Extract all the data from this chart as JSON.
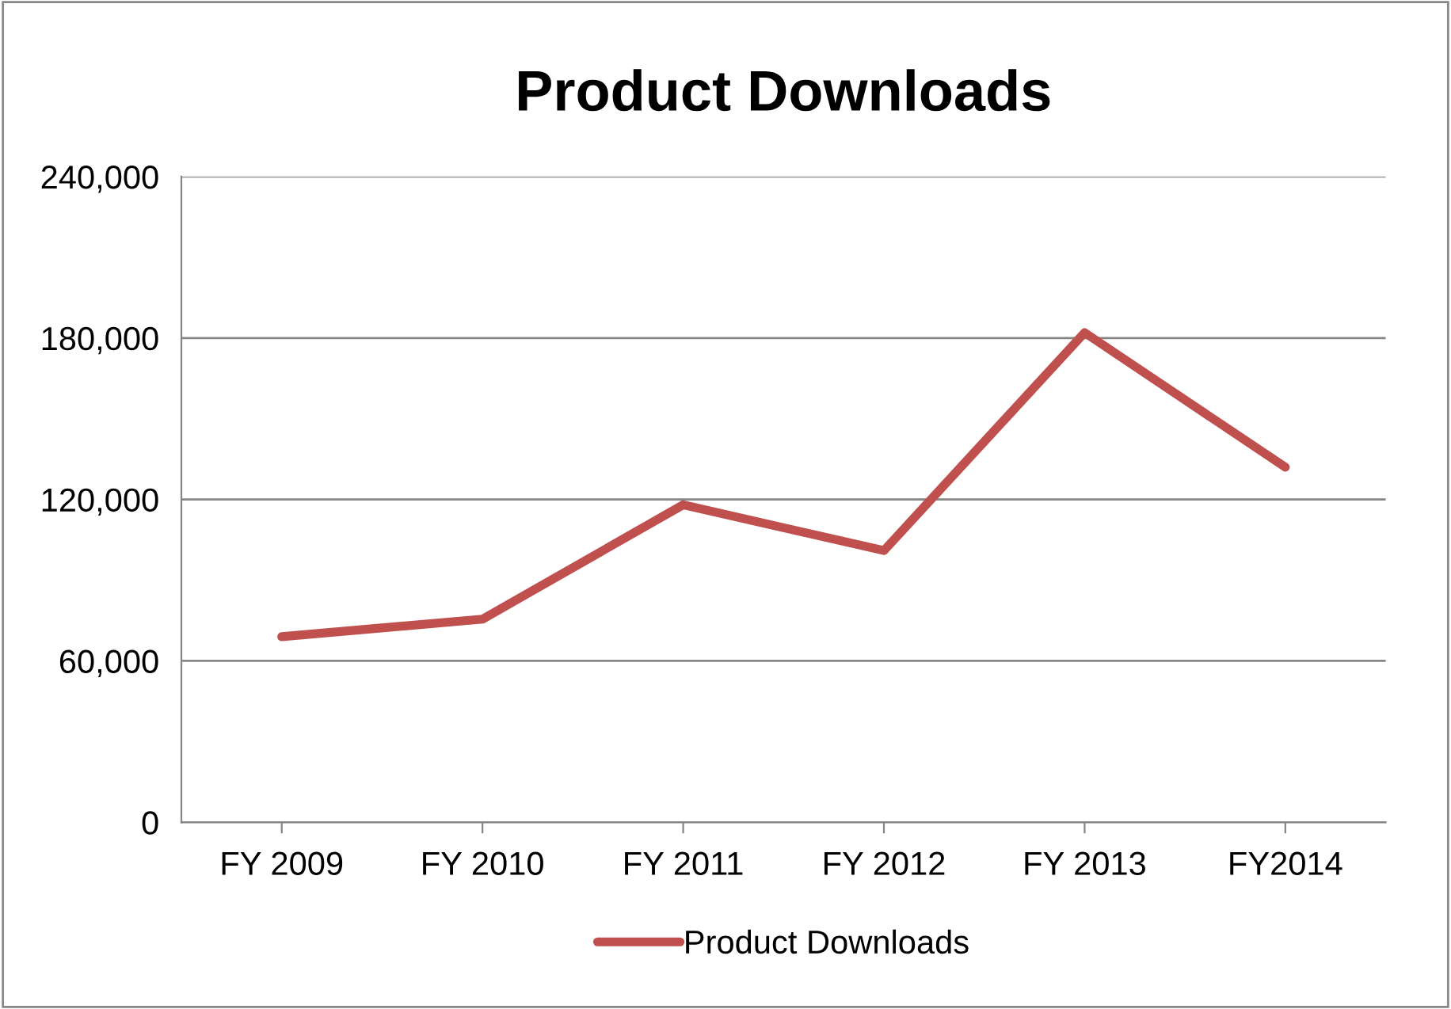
{
  "chart_data": {
    "type": "line",
    "title": "Product Downloads",
    "categories": [
      "FY 2009",
      "FY 2010",
      "FY 2011",
      "FY 2012",
      "FY 2013",
      "FY2014"
    ],
    "series": [
      {
        "name": "Product Downloads",
        "color": "#c0504d",
        "values": [
          69000,
          75500,
          118000,
          101000,
          182000,
          132000
        ]
      }
    ],
    "ylim": [
      0,
      240000
    ],
    "yticks": [
      0,
      {
        "value": 60000,
        "label": "60,000"
      },
      {
        "value": 120000,
        "label": "120,000"
      },
      {
        "value": 180000,
        "label": "180,000"
      },
      {
        "value": 240000,
        "label": "240,000"
      }
    ],
    "grid": "y",
    "legend": "bottom",
    "marker": "none",
    "line_style": "solid"
  }
}
